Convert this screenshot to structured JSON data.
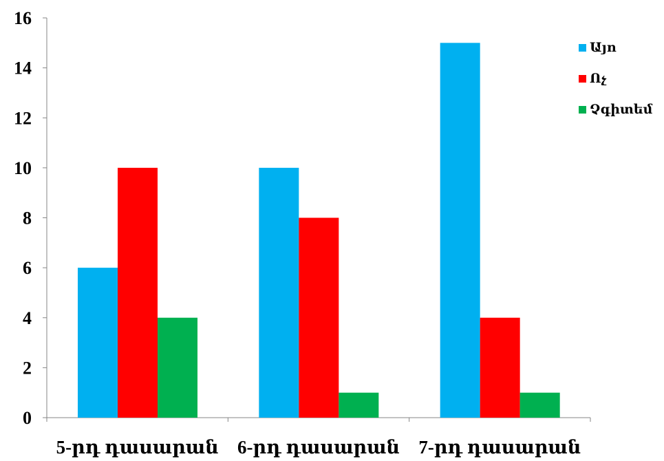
{
  "chart_data": {
    "type": "bar",
    "categories": [
      "5-րդ դասարան",
      "6-րդ դասարան",
      "7-րդ դասարան"
    ],
    "series": [
      {
        "name": "Այո",
        "values": [
          6,
          10,
          15
        ],
        "color": "#00B0F0"
      },
      {
        "name": "Ոչ",
        "values": [
          10,
          8,
          4
        ],
        "color": "#FF0000"
      },
      {
        "name": "Չգիտեմ",
        "values": [
          4,
          1,
          1
        ],
        "color": "#00B050"
      }
    ],
    "ylim": [
      0,
      16
    ],
    "yticks": [
      0,
      2,
      4,
      6,
      8,
      10,
      12,
      14,
      16
    ],
    "title": "",
    "xlabel": "",
    "ylabel": "",
    "grid": false,
    "legend_position": "top-right"
  }
}
